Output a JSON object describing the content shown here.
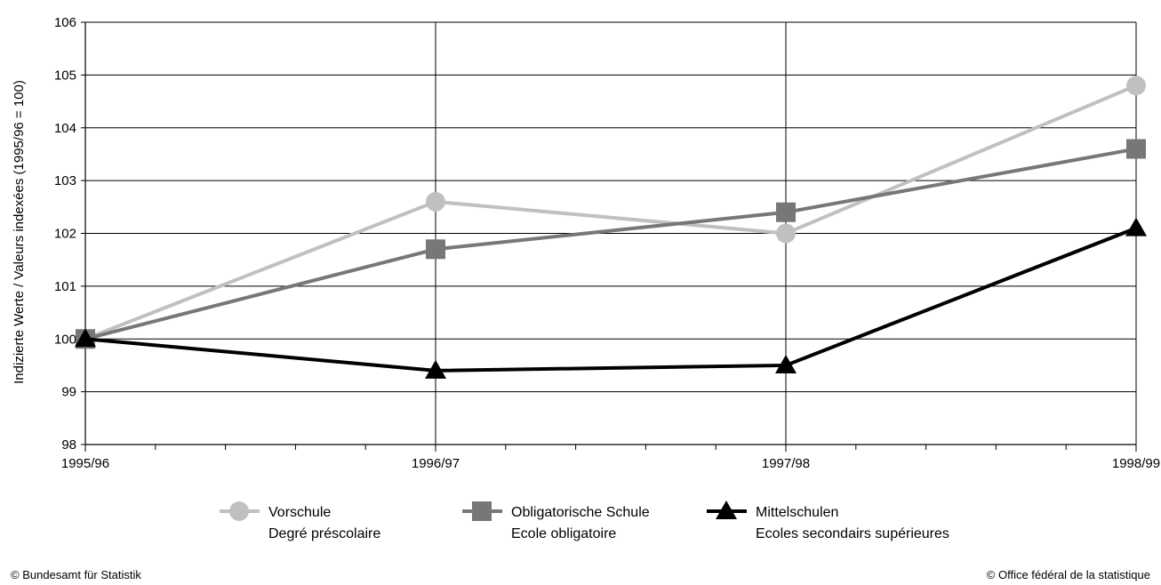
{
  "chart_data": {
    "type": "line",
    "title": "",
    "ylabel": "Indizierte Werte / Valeurs indexées (1995/96 = 100)",
    "xlabel": "",
    "categories": [
      "1995/96",
      "1996/97",
      "1997/98",
      "1998/99"
    ],
    "ylim": [
      98,
      106
    ],
    "yticks": [
      98,
      99,
      100,
      101,
      102,
      103,
      104,
      105,
      106
    ],
    "grid": true,
    "legend_position": "bottom",
    "series": [
      {
        "name": "Vorschule",
        "name2": "Degré préscolaire",
        "values": [
          100,
          102.6,
          102.0,
          104.8
        ],
        "color": "#c0c0c0",
        "marker": "circle"
      },
      {
        "name": "Obligatorische Schule",
        "name2": "Ecole obligatoire",
        "values": [
          100,
          101.7,
          102.4,
          103.6
        ],
        "color": "#777777",
        "marker": "square"
      },
      {
        "name": "Mittelschulen",
        "name2": "Ecoles secondairs supérieures",
        "values": [
          100,
          99.4,
          99.5,
          102.1
        ],
        "color": "#000000",
        "marker": "triangle"
      }
    ]
  },
  "footer": {
    "left": "© Bundesamt für Statistik",
    "right": "© Office fédéral de la statistique"
  }
}
